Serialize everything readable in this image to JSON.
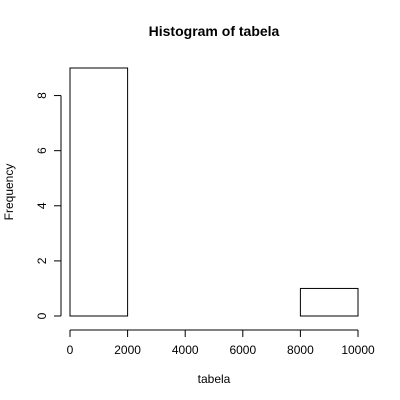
{
  "chart_data": {
    "type": "bar",
    "title": "Histogram of tabela",
    "xlabel": "tabela",
    "ylabel": "Frequency",
    "bins": [
      {
        "from": 0,
        "to": 2000,
        "count": 9
      },
      {
        "from": 2000,
        "to": 4000,
        "count": 0
      },
      {
        "from": 4000,
        "to": 6000,
        "count": 0
      },
      {
        "from": 6000,
        "to": 8000,
        "count": 0
      },
      {
        "from": 8000,
        "to": 10000,
        "count": 1
      }
    ],
    "xlim": [
      0,
      10000
    ],
    "ylim": [
      0,
      9
    ],
    "x_ticks": [
      "0",
      "2000",
      "4000",
      "6000",
      "8000",
      "10000"
    ],
    "y_ticks": [
      "0",
      "2",
      "4",
      "6",
      "8"
    ],
    "grid": false,
    "bar_fill": "#ffffff",
    "bar_stroke": "#000000"
  }
}
